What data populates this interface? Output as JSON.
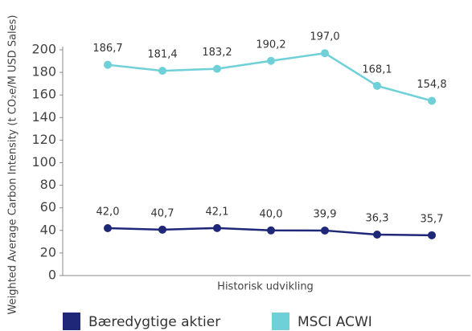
{
  "chart_data": {
    "type": "line",
    "y_label": "Weighted Average Carbon Intensity (t CO₂e/M USD Sales)",
    "x_label": "Historisk udvikling",
    "categories": [
      null,
      null,
      null,
      null,
      null,
      null,
      null
    ],
    "series": [
      {
        "name": "Bæredygtige aktier",
        "color": "#1f2878",
        "values": [
          42.0,
          40.7,
          42.1,
          40.0,
          39.9,
          36.3,
          35.7
        ],
        "value_labels": [
          "42,0",
          "40,7",
          "42,1",
          "40,0",
          "39,9",
          "36,3",
          "35,7"
        ]
      },
      {
        "name": "MSCI ACWI",
        "color": "#6fd0d8",
        "values": [
          186.7,
          181.4,
          183.2,
          190.2,
          197.0,
          168.1,
          154.8
        ],
        "value_labels": [
          "186,7",
          "181,4",
          "183,2",
          "190,2",
          "197,0",
          "168,1",
          "154,8"
        ]
      }
    ],
    "ylim": [
      0,
      200
    ],
    "yticks": [
      0,
      20,
      40,
      60,
      80,
      100,
      120,
      140,
      160,
      180,
      200
    ]
  }
}
